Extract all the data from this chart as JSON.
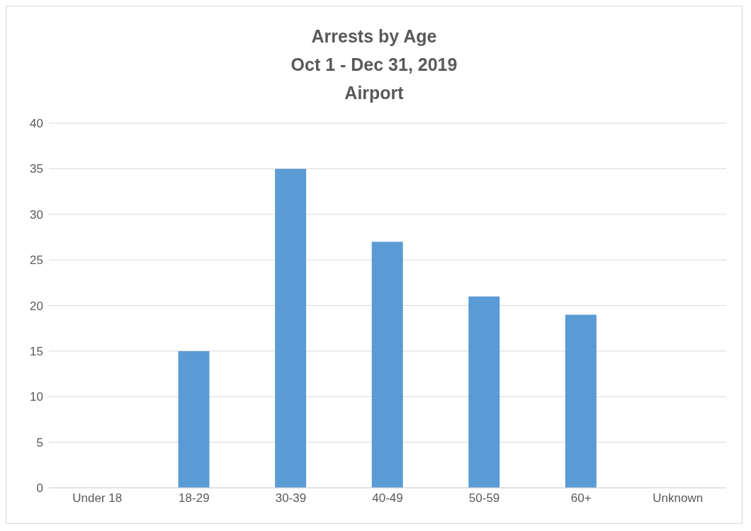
{
  "chart_data": {
    "type": "bar",
    "title": "Arrests by Age\nOct 1 - Dec 31, 2019\nAirport",
    "categories": [
      "Under 18",
      "18-29",
      "30-39",
      "40-49",
      "50-59",
      "60+",
      "Unknown"
    ],
    "values": [
      0,
      15,
      35,
      27,
      21,
      19,
      0
    ],
    "color": "#5b9bd5",
    "ylim": [
      0,
      40
    ],
    "yticks": [
      0,
      5,
      10,
      15,
      20,
      25,
      30,
      35,
      40
    ],
    "grid": "y"
  }
}
